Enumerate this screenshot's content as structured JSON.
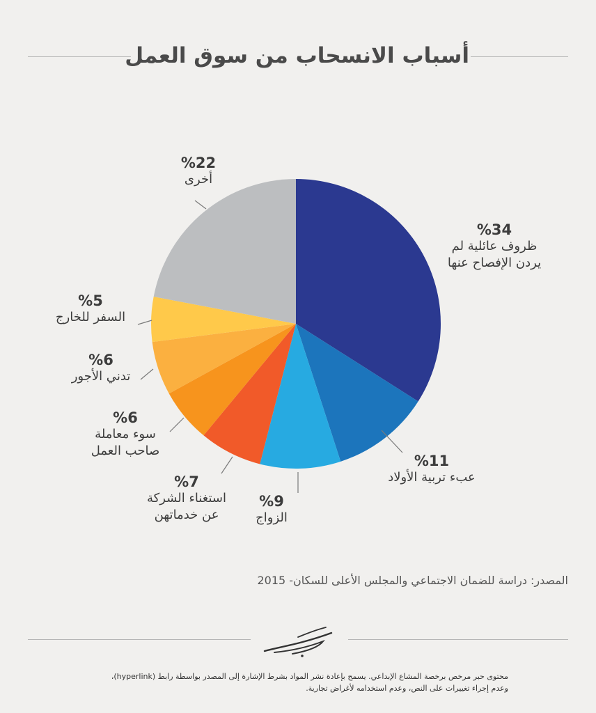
{
  "title": "أسباب الانسحاب من سوق العمل",
  "chart_data": {
    "type": "pie",
    "slices": [
      {
        "label": "ظروف عائلية لم يردن الإفصاح عنها",
        "label_lines": [
          "ظروف عائلية لم",
          "يردن الإفصاح عنها"
        ],
        "value": 34,
        "pct_label": "%34",
        "color": "#2b3990"
      },
      {
        "label": "عبء تربية الأولاد",
        "label_lines": [
          "عبء تربية الأولاد"
        ],
        "value": 11,
        "pct_label": "%11",
        "color": "#1c75bc"
      },
      {
        "label": "الزواج",
        "label_lines": [
          "الزواج"
        ],
        "value": 9,
        "pct_label": "%9",
        "color": "#27aae1"
      },
      {
        "label": "استغناء الشركة عن خدماتهن",
        "label_lines": [
          "استغناء الشركة",
          "عن خدماتهن"
        ],
        "value": 7,
        "pct_label": "%7",
        "color": "#f15a29"
      },
      {
        "label": "سوء معاملة صاحب العمل",
        "label_lines": [
          "سوء معاملة",
          "صاحب العمل"
        ],
        "value": 6,
        "pct_label": "%6",
        "color": "#f7941d"
      },
      {
        "label": "تدني الأجور",
        "label_lines": [
          "تدني الأجور"
        ],
        "value": 6,
        "pct_label": "%6",
        "color": "#fbb040"
      },
      {
        "label": "السفر للخارج",
        "label_lines": [
          "السفر للخارج"
        ],
        "value": 5,
        "pct_label": "%5",
        "color": "#ffc94a"
      },
      {
        "label": "أخرى",
        "label_lines": [
          "أخرى"
        ],
        "value": 22,
        "pct_label": "%22",
        "color": "#bcbec0"
      }
    ],
    "start_angle_deg": 0,
    "direction": "clockwise",
    "leader_color": "#7a7a7a"
  },
  "source": "المصدر: دراسة للضمان الاجتماعي والمجلس الأعلى للسكان- 2015",
  "license_lines": [
    "محتوى حبر مرخص برخصة المشاع الإبداعي. يسمح بإعادة نشر المواد بشرط الإشارة إلى المصدر بواسطة رابط (hyperlink)،",
    "وعدم إجراء تغييرات على النص، وعدم استخدامه لأغراض تجارية."
  ]
}
